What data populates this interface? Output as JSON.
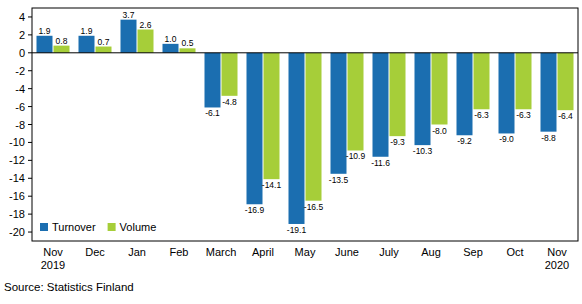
{
  "chart_data": {
    "type": "bar",
    "categories": [
      "Nov\n2019",
      "Dec",
      "Jan",
      "Feb",
      "March",
      "April",
      "May",
      "June",
      "July",
      "Aug",
      "Sep",
      "Oct",
      "Nov\n2020"
    ],
    "series": [
      {
        "name": "Turnover",
        "color": "#1b6eb0",
        "values": [
          1.9,
          1.9,
          3.7,
          1.0,
          -6.1,
          -16.9,
          -19.1,
          -13.5,
          -11.6,
          -10.3,
          -9.2,
          -9.0,
          -8.8
        ],
        "value_labels": [
          "1.9",
          "1.9",
          "3.7",
          "1.0",
          "-6.1",
          "-16.9",
          "-19.1",
          "-13.5",
          "-11.6",
          "-10.3",
          "-9.2",
          "-9.0",
          "-8.8"
        ]
      },
      {
        "name": "Volume",
        "color": "#a6ce39",
        "values": [
          0.8,
          0.7,
          2.6,
          0.5,
          -4.8,
          -14.1,
          -16.5,
          -10.9,
          -9.3,
          -8.0,
          -6.3,
          -6.3,
          -6.4
        ],
        "value_labels": [
          "0.8",
          "0.7",
          "2.6",
          "0.5",
          "-4.8",
          "-14.1",
          "-16.5",
          "-10.9",
          "-9.3",
          "-8.0",
          "-6.3",
          "-6.3",
          "-6.4"
        ]
      }
    ],
    "ylim": [
      -21,
      5
    ],
    "yticks": [
      -20,
      -18,
      -16,
      -14,
      -12,
      -10,
      -8,
      -6,
      -4,
      -2,
      0,
      2,
      4
    ],
    "grid": false,
    "legend": "lower left",
    "data_labels": true,
    "source": "Source: Statistics Finland"
  }
}
